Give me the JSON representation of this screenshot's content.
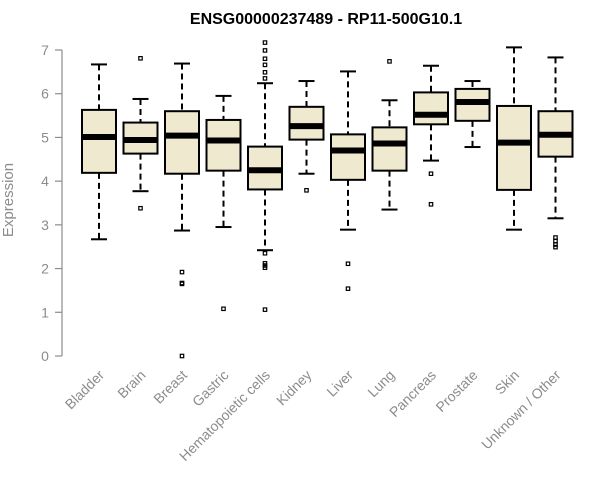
{
  "chart_data": {
    "type": "boxplot",
    "title": "ENSG00000237489 - RP11-500G10.1",
    "ylabel": "Expression",
    "xlabel": "",
    "ylim": [
      0,
      7
    ],
    "yticks": [
      0,
      1,
      2,
      3,
      4,
      5,
      6,
      7
    ],
    "grid": false,
    "colors": {
      "box_fill": "#EFE9D0",
      "stroke": "#000000",
      "axis": "#8C8C8C"
    },
    "categories": [
      "Bladder",
      "Brain",
      "Breast",
      "Gastric",
      "Hematopoietic cells",
      "Kidney",
      "Liver",
      "Lung",
      "Pancreas",
      "Prostate",
      "Skin",
      "Unknown / Other"
    ],
    "boxes": [
      {
        "label": "Bladder",
        "whisker_low": 2.67,
        "q1": 4.19,
        "median": 5.01,
        "q3": 5.63,
        "whisker_high": 6.67,
        "outliers": []
      },
      {
        "label": "Brain",
        "whisker_low": 3.77,
        "q1": 4.63,
        "median": 4.94,
        "q3": 5.34,
        "whisker_high": 5.88,
        "outliers": [
          6.81,
          3.38
        ]
      },
      {
        "label": "Breast",
        "whisker_low": 2.87,
        "q1": 4.17,
        "median": 5.04,
        "q3": 5.6,
        "whisker_high": 6.69,
        "outliers": [
          1.92,
          1.65,
          1.67,
          0.0
        ]
      },
      {
        "label": "Gastric",
        "whisker_low": 2.95,
        "q1": 4.24,
        "median": 4.93,
        "q3": 5.4,
        "whisker_high": 5.95,
        "outliers": [
          1.08
        ]
      },
      {
        "label": "Hematopoietic cells",
        "whisker_low": 2.42,
        "q1": 3.81,
        "median": 4.25,
        "q3": 4.79,
        "whisker_high": 6.24,
        "outliers": [
          7.17,
          6.99,
          6.8,
          6.66,
          6.49,
          6.35,
          2.35,
          2.12,
          2.07,
          2.02,
          1.06
        ]
      },
      {
        "label": "Kidney",
        "whisker_low": 4.17,
        "q1": 4.95,
        "median": 5.26,
        "q3": 5.7,
        "whisker_high": 6.29,
        "outliers": [
          3.79
        ]
      },
      {
        "label": "Liver",
        "whisker_low": 2.89,
        "q1": 4.03,
        "median": 4.7,
        "q3": 5.07,
        "whisker_high": 6.51,
        "outliers": [
          2.11,
          1.54
        ]
      },
      {
        "label": "Lung",
        "whisker_low": 3.35,
        "q1": 4.24,
        "median": 4.86,
        "q3": 5.23,
        "whisker_high": 5.85,
        "outliers": [
          6.74
        ]
      },
      {
        "label": "Pancreas",
        "whisker_low": 4.47,
        "q1": 5.3,
        "median": 5.52,
        "q3": 6.03,
        "whisker_high": 6.64,
        "outliers": [
          4.17,
          3.47
        ]
      },
      {
        "label": "Prostate",
        "whisker_low": 4.78,
        "q1": 5.38,
        "median": 5.81,
        "q3": 6.11,
        "whisker_high": 6.29,
        "outliers": []
      },
      {
        "label": "Skin",
        "whisker_low": 2.89,
        "q1": 3.8,
        "median": 4.88,
        "q3": 5.72,
        "whisker_high": 7.06,
        "outliers": []
      },
      {
        "label": "Unknown / Other",
        "whisker_low": 3.15,
        "q1": 4.56,
        "median": 5.06,
        "q3": 5.6,
        "whisker_high": 6.83,
        "outliers": [
          2.71,
          2.63,
          2.55,
          2.49
        ]
      }
    ]
  }
}
